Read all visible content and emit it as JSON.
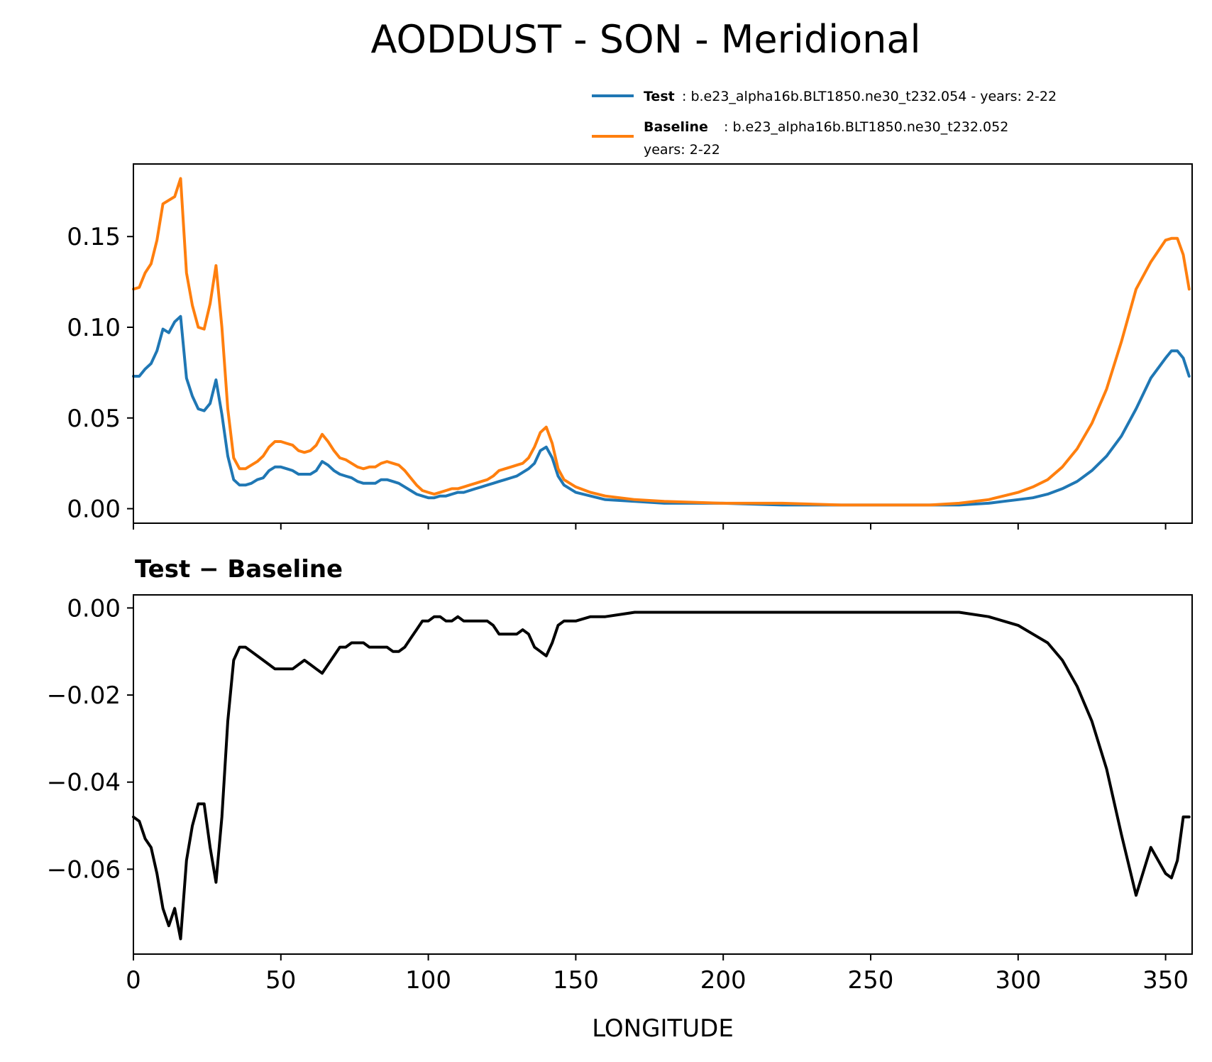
{
  "figure": {
    "title": "AODDUST - SON - Meridional",
    "xlabel": "LONGITUDE"
  },
  "legend": {
    "test_label": "Test",
    "test_desc": ": b.e23_alpha16b.BLT1850.ne30_t232.054 - years: 2-22",
    "baseline_label": "Baseline",
    "baseline_desc": ": b.e23_alpha16b.BLT1850.ne30_t232.052",
    "baseline_desc2": "years: 2-22"
  },
  "colors": {
    "test": "#1f77b4",
    "baseline": "#ff7f0e",
    "difference": "#000000"
  },
  "chart_data": [
    {
      "type": "line",
      "title": "",
      "xlabel": "",
      "ylabel": "",
      "xlim": [
        0,
        359
      ],
      "ylim": [
        -0.008,
        0.19
      ],
      "xticks": [
        0,
        50,
        100,
        150,
        200,
        250,
        300,
        350
      ],
      "yticks": [
        0.0,
        0.05,
        0.1,
        0.15
      ],
      "ytick_labels": [
        "0.00",
        "0.05",
        "0.10",
        "0.15"
      ],
      "legend_position": "above-right",
      "series": [
        {
          "name": "Test",
          "color": "#1f77b4",
          "x": [
            0,
            2,
            4,
            6,
            8,
            10,
            12,
            14,
            16,
            18,
            20,
            22,
            24,
            26,
            28,
            30,
            32,
            34,
            36,
            38,
            40,
            42,
            44,
            46,
            48,
            50,
            52,
            54,
            56,
            58,
            60,
            62,
            64,
            66,
            68,
            70,
            72,
            74,
            76,
            78,
            80,
            82,
            84,
            86,
            88,
            90,
            92,
            94,
            96,
            98,
            100,
            102,
            104,
            106,
            108,
            110,
            112,
            114,
            116,
            118,
            120,
            122,
            124,
            126,
            128,
            130,
            132,
            134,
            136,
            138,
            140,
            142,
            144,
            146,
            148,
            150,
            155,
            160,
            170,
            180,
            200,
            220,
            240,
            260,
            270,
            280,
            290,
            295,
            300,
            305,
            310,
            315,
            320,
            325,
            330,
            335,
            340,
            345,
            350,
            352,
            354,
            356,
            358
          ],
          "y": [
            0.073,
            0.073,
            0.077,
            0.08,
            0.087,
            0.099,
            0.097,
            0.103,
            0.106,
            0.072,
            0.062,
            0.055,
            0.054,
            0.058,
            0.071,
            0.052,
            0.029,
            0.016,
            0.013,
            0.013,
            0.014,
            0.016,
            0.017,
            0.021,
            0.023,
            0.023,
            0.022,
            0.021,
            0.019,
            0.019,
            0.019,
            0.021,
            0.026,
            0.024,
            0.021,
            0.019,
            0.018,
            0.017,
            0.015,
            0.014,
            0.014,
            0.014,
            0.016,
            0.016,
            0.015,
            0.014,
            0.012,
            0.01,
            0.008,
            0.007,
            0.006,
            0.006,
            0.007,
            0.007,
            0.008,
            0.009,
            0.009,
            0.01,
            0.011,
            0.012,
            0.013,
            0.014,
            0.015,
            0.016,
            0.017,
            0.018,
            0.02,
            0.022,
            0.025,
            0.032,
            0.034,
            0.028,
            0.018,
            0.013,
            0.011,
            0.009,
            0.007,
            0.005,
            0.004,
            0.003,
            0.003,
            0.002,
            0.002,
            0.002,
            0.002,
            0.002,
            0.003,
            0.004,
            0.005,
            0.006,
            0.008,
            0.011,
            0.015,
            0.021,
            0.029,
            0.04,
            0.055,
            0.072,
            0.083,
            0.087,
            0.087,
            0.083,
            0.073
          ]
        },
        {
          "name": "Baseline",
          "color": "#ff7f0e",
          "x": [
            0,
            2,
            4,
            6,
            8,
            10,
            12,
            14,
            16,
            18,
            20,
            22,
            24,
            26,
            28,
            30,
            32,
            34,
            36,
            38,
            40,
            42,
            44,
            46,
            48,
            50,
            52,
            54,
            56,
            58,
            60,
            62,
            64,
            66,
            68,
            70,
            72,
            74,
            76,
            78,
            80,
            82,
            84,
            86,
            88,
            90,
            92,
            94,
            96,
            98,
            100,
            102,
            104,
            106,
            108,
            110,
            112,
            114,
            116,
            118,
            120,
            122,
            124,
            126,
            128,
            130,
            132,
            134,
            136,
            138,
            140,
            142,
            144,
            146,
            148,
            150,
            155,
            160,
            170,
            180,
            200,
            220,
            240,
            260,
            270,
            280,
            290,
            295,
            300,
            305,
            310,
            315,
            320,
            325,
            330,
            335,
            340,
            345,
            350,
            352,
            354,
            356,
            358
          ],
          "y": [
            0.121,
            0.122,
            0.13,
            0.135,
            0.148,
            0.168,
            0.17,
            0.172,
            0.182,
            0.13,
            0.112,
            0.1,
            0.099,
            0.113,
            0.134,
            0.1,
            0.055,
            0.028,
            0.022,
            0.022,
            0.024,
            0.026,
            0.029,
            0.034,
            0.037,
            0.037,
            0.036,
            0.035,
            0.032,
            0.031,
            0.032,
            0.035,
            0.041,
            0.037,
            0.032,
            0.028,
            0.027,
            0.025,
            0.023,
            0.022,
            0.023,
            0.023,
            0.025,
            0.026,
            0.025,
            0.024,
            0.021,
            0.017,
            0.013,
            0.01,
            0.009,
            0.008,
            0.009,
            0.01,
            0.011,
            0.011,
            0.012,
            0.013,
            0.014,
            0.015,
            0.016,
            0.018,
            0.021,
            0.022,
            0.023,
            0.024,
            0.025,
            0.028,
            0.034,
            0.042,
            0.045,
            0.036,
            0.022,
            0.016,
            0.014,
            0.012,
            0.009,
            0.007,
            0.005,
            0.004,
            0.003,
            0.003,
            0.002,
            0.002,
            0.002,
            0.003,
            0.005,
            0.007,
            0.009,
            0.012,
            0.016,
            0.023,
            0.033,
            0.047,
            0.066,
            0.092,
            0.121,
            0.136,
            0.148,
            0.149,
            0.149,
            0.14,
            0.121
          ]
        }
      ]
    },
    {
      "type": "line",
      "title": "Test − Baseline",
      "xlabel": "LONGITUDE",
      "ylabel": "",
      "xlim": [
        0,
        359
      ],
      "ylim": [
        -0.0795,
        0.003
      ],
      "xticks": [
        0,
        50,
        100,
        150,
        200,
        250,
        300,
        350
      ],
      "xtick_labels": [
        "0",
        "50",
        "100",
        "150",
        "200",
        "250",
        "300",
        "350"
      ],
      "yticks": [
        0.0,
        -0.02,
        -0.04,
        -0.06
      ],
      "ytick_labels": [
        "0.00",
        "−0.02",
        "−0.04",
        "−0.06"
      ],
      "series": [
        {
          "color": "#000000",
          "x": [
            0,
            2,
            4,
            6,
            8,
            10,
            12,
            14,
            16,
            18,
            20,
            22,
            24,
            26,
            28,
            30,
            32,
            34,
            36,
            38,
            40,
            42,
            44,
            46,
            48,
            50,
            52,
            54,
            56,
            58,
            60,
            62,
            64,
            66,
            68,
            70,
            72,
            74,
            76,
            78,
            80,
            82,
            84,
            86,
            88,
            90,
            92,
            94,
            96,
            98,
            100,
            102,
            104,
            106,
            108,
            110,
            112,
            114,
            116,
            118,
            120,
            122,
            124,
            126,
            128,
            130,
            132,
            134,
            136,
            138,
            140,
            142,
            144,
            146,
            148,
            150,
            155,
            160,
            170,
            180,
            200,
            220,
            240,
            260,
            270,
            280,
            290,
            295,
            300,
            305,
            310,
            315,
            320,
            325,
            330,
            335,
            340,
            345,
            350,
            352,
            354,
            356,
            358
          ],
          "y": [
            -0.048,
            -0.049,
            -0.053,
            -0.055,
            -0.061,
            -0.069,
            -0.073,
            -0.069,
            -0.076,
            -0.058,
            -0.05,
            -0.045,
            -0.045,
            -0.055,
            -0.063,
            -0.048,
            -0.026,
            -0.012,
            -0.009,
            -0.009,
            -0.01,
            -0.011,
            -0.012,
            -0.013,
            -0.014,
            -0.014,
            -0.014,
            -0.014,
            -0.013,
            -0.012,
            -0.013,
            -0.014,
            -0.015,
            -0.013,
            -0.011,
            -0.009,
            -0.009,
            -0.008,
            -0.008,
            -0.008,
            -0.009,
            -0.009,
            -0.009,
            -0.009,
            -0.01,
            -0.01,
            -0.009,
            -0.007,
            -0.005,
            -0.003,
            -0.003,
            -0.002,
            -0.002,
            -0.003,
            -0.003,
            -0.002,
            -0.003,
            -0.003,
            -0.003,
            -0.003,
            -0.003,
            -0.004,
            -0.006,
            -0.006,
            -0.006,
            -0.006,
            -0.005,
            -0.006,
            -0.009,
            -0.01,
            -0.011,
            -0.008,
            -0.004,
            -0.003,
            -0.003,
            -0.003,
            -0.002,
            -0.002,
            -0.001,
            -0.001,
            -0.001,
            -0.001,
            -0.001,
            -0.001,
            -0.001,
            -0.001,
            -0.002,
            -0.003,
            -0.004,
            -0.006,
            -0.008,
            -0.012,
            -0.018,
            -0.026,
            -0.037,
            -0.052,
            -0.066,
            -0.055,
            -0.061,
            -0.062,
            -0.058,
            -0.048,
            -0.048
          ]
        }
      ]
    }
  ]
}
